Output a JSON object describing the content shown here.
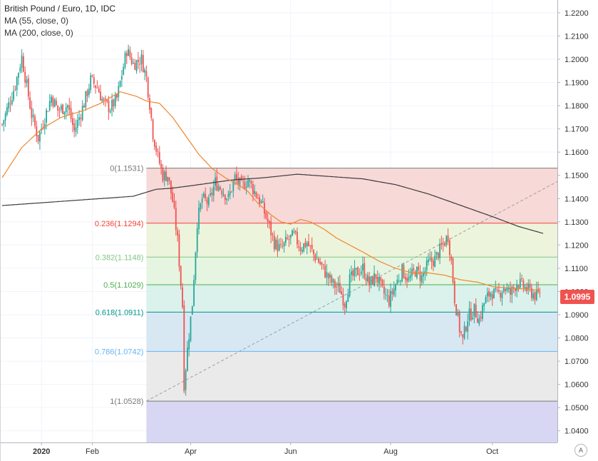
{
  "legend": {
    "title": "British Pound / Euro, 1D, IDC",
    "ma55": "MA (55, close, 0)",
    "ma200": "MA (200, close, 0)"
  },
  "price_badge": "1.0995",
  "auto_button": "A",
  "colors": {
    "up": "#26a69a",
    "down": "#ef5350",
    "ma55": "#f0862d",
    "ma200": "#3b3b3b",
    "fib_lines": [
      "#787878",
      "#f44336",
      "#81c784",
      "#4caf50",
      "#009688",
      "#64b5f6",
      "#787878"
    ],
    "fib_fills": [
      "#f6d5d4",
      "#ebf3d8",
      "#e2f4de",
      "#d6f0ea",
      "#d3e6f2",
      "#e8e8e8",
      "#d3d3f2"
    ]
  },
  "chart_data": {
    "type": "candlestick",
    "ylim": [
      1.035,
      1.2255
    ],
    "y_ticks": [
      "1.2200",
      "1.2100",
      "1.2000",
      "1.1900",
      "1.1800",
      "1.1700",
      "1.1600",
      "1.1500",
      "1.1400",
      "1.1300",
      "1.1200",
      "1.1100",
      "1.1000",
      "1.0900",
      "1.0800",
      "1.0700",
      "1.0600",
      "1.0500",
      "1.0400"
    ],
    "x_ticks": [
      {
        "label": "2020",
        "day": 24
      },
      {
        "label": "Feb",
        "day": 55
      },
      {
        "label": "Apr",
        "day": 115
      },
      {
        "label": "Jun",
        "day": 176
      },
      {
        "label": "Aug",
        "day": 237
      },
      {
        "label": "Oct",
        "day": 299
      }
    ],
    "last_price": 1.0995,
    "fib_retracement": {
      "start_day": 88,
      "end_day": 354,
      "levels": [
        {
          "label": "0(1.1531)",
          "value": 1.1531
        },
        {
          "label": "0.236(1.1294)",
          "value": 1.1294
        },
        {
          "label": "0.382(1.1148)",
          "value": 1.1148
        },
        {
          "label": "0.5(1.1029)",
          "value": 1.1029
        },
        {
          "label": "0.618(1.0911)",
          "value": 1.0911
        },
        {
          "label": "0.786(1.0742)",
          "value": 1.0742
        },
        {
          "label": "1(1.0528)",
          "value": 1.0528
        }
      ],
      "bottom_fill_to": 1.035
    },
    "trend_line": {
      "from_day": 88,
      "from_value": 1.0528,
      "to_day": 354,
      "to_value": 1.1531
    },
    "close_anchors": [
      [
        0,
        1.172
      ],
      [
        8,
        1.189
      ],
      [
        12,
        1.201
      ],
      [
        18,
        1.176
      ],
      [
        22,
        1.166
      ],
      [
        30,
        1.184
      ],
      [
        34,
        1.178
      ],
      [
        40,
        1.18
      ],
      [
        44,
        1.169
      ],
      [
        50,
        1.181
      ],
      [
        54,
        1.191
      ],
      [
        58,
        1.188
      ],
      [
        62,
        1.181
      ],
      [
        66,
        1.179
      ],
      [
        70,
        1.183
      ],
      [
        76,
        1.204
      ],
      [
        80,
        1.198
      ],
      [
        85,
        1.2
      ],
      [
        88,
        1.192
      ],
      [
        90,
        1.181
      ],
      [
        92,
        1.168
      ],
      [
        95,
        1.158
      ],
      [
        98,
        1.15
      ],
      [
        101,
        1.15
      ],
      [
        104,
        1.139
      ],
      [
        107,
        1.122
      ],
      [
        110,
        1.094
      ],
      [
        111,
        1.06
      ],
      [
        113,
        1.075
      ],
      [
        116,
        1.095
      ],
      [
        119,
        1.13
      ],
      [
        122,
        1.14
      ],
      [
        126,
        1.138
      ],
      [
        130,
        1.147
      ],
      [
        134,
        1.144
      ],
      [
        138,
        1.14
      ],
      [
        142,
        1.149
      ],
      [
        146,
        1.145
      ],
      [
        150,
        1.148
      ],
      [
        154,
        1.143
      ],
      [
        158,
        1.138
      ],
      [
        162,
        1.13
      ],
      [
        166,
        1.121
      ],
      [
        170,
        1.118
      ],
      [
        174,
        1.122
      ],
      [
        178,
        1.124
      ],
      [
        182,
        1.119
      ],
      [
        186,
        1.121
      ],
      [
        190,
        1.116
      ],
      [
        194,
        1.112
      ],
      [
        198,
        1.107
      ],
      [
        202,
        1.103
      ],
      [
        206,
        1.101
      ],
      [
        209,
        1.095
      ],
      [
        212,
        1.105
      ],
      [
        216,
        1.108
      ],
      [
        220,
        1.11
      ],
      [
        224,
        1.103
      ],
      [
        228,
        1.107
      ],
      [
        232,
        1.1
      ],
      [
        236,
        1.096
      ],
      [
        240,
        1.103
      ],
      [
        244,
        1.109
      ],
      [
        248,
        1.105
      ],
      [
        252,
        1.109
      ],
      [
        256,
        1.106
      ],
      [
        260,
        1.112
      ],
      [
        264,
        1.114
      ],
      [
        268,
        1.119
      ],
      [
        272,
        1.124
      ],
      [
        274,
        1.113
      ],
      [
        276,
        1.097
      ],
      [
        279,
        1.084
      ],
      [
        281,
        1.079
      ],
      [
        284,
        1.089
      ],
      [
        288,
        1.092
      ],
      [
        291,
        1.088
      ],
      [
        294,
        1.095
      ],
      [
        298,
        1.1
      ],
      [
        302,
        1.098
      ],
      [
        306,
        1.102
      ],
      [
        310,
        1.099
      ],
      [
        314,
        1.104
      ],
      [
        318,
        1.102
      ],
      [
        322,
        1.1
      ],
      [
        326,
        1.098
      ],
      [
        328,
        1.0995
      ]
    ],
    "ma55_anchors": [
      [
        0,
        1.149
      ],
      [
        12,
        1.162
      ],
      [
        24,
        1.17
      ],
      [
        36,
        1.175
      ],
      [
        50,
        1.178
      ],
      [
        60,
        1.181
      ],
      [
        72,
        1.186
      ],
      [
        82,
        1.184
      ],
      [
        88,
        1.182
      ],
      [
        96,
        1.181
      ],
      [
        104,
        1.175
      ],
      [
        112,
        1.167
      ],
      [
        120,
        1.159
      ],
      [
        128,
        1.153
      ],
      [
        136,
        1.149
      ],
      [
        144,
        1.146
      ],
      [
        150,
        1.143
      ],
      [
        156,
        1.138
      ],
      [
        164,
        1.133
      ],
      [
        170,
        1.13
      ],
      [
        176,
        1.129
      ],
      [
        182,
        1.131
      ],
      [
        188,
        1.13
      ],
      [
        196,
        1.127
      ],
      [
        204,
        1.123
      ],
      [
        212,
        1.12
      ],
      [
        220,
        1.117
      ],
      [
        230,
        1.113
      ],
      [
        240,
        1.11
      ],
      [
        250,
        1.108
      ],
      [
        260,
        1.108
      ],
      [
        270,
        1.107
      ],
      [
        280,
        1.105
      ],
      [
        290,
        1.104
      ],
      [
        300,
        1.102
      ],
      [
        310,
        1.1015
      ],
      [
        320,
        1.101
      ],
      [
        328,
        1.1005
      ]
    ],
    "ma200_anchors": [
      [
        0,
        1.137
      ],
      [
        30,
        1.1385
      ],
      [
        60,
        1.14
      ],
      [
        80,
        1.141
      ],
      [
        94,
        1.144
      ],
      [
        104,
        1.1445
      ],
      [
        120,
        1.146
      ],
      [
        140,
        1.148
      ],
      [
        160,
        1.149
      ],
      [
        180,
        1.1505
      ],
      [
        200,
        1.1495
      ],
      [
        220,
        1.1485
      ],
      [
        240,
        1.146
      ],
      [
        260,
        1.142
      ],
      [
        280,
        1.137
      ],
      [
        300,
        1.132
      ],
      [
        315,
        1.128
      ],
      [
        330,
        1.125
      ]
    ]
  }
}
